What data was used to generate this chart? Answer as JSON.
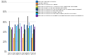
{
  "years": [
    "2013",
    "2014",
    "2015",
    "2016",
    "2017",
    "2018"
  ],
  "institutes": [
    "National Cancer Institute",
    "Clinical Center",
    "National Institute on Aging",
    "National Institute on Allergies and Infectious Diseases",
    "National Heart Lung and Blood Institute",
    "National Institute on Child Health and Human Development",
    "National Institute on Mental Health",
    "National Institute on Drug Abuse",
    "National Institute on Environmental Health Sciences",
    "National Institute on Diabetes Digestive and Kidney Disorders"
  ],
  "colors": [
    "#2e75b6",
    "#ed7d31",
    "#808080",
    "#ffd966",
    "#70ad47",
    "#264478",
    "#9dc3e6",
    "#375623",
    "#00b0f0",
    "#7030a0"
  ],
  "values": [
    [
      52,
      54,
      54,
      52,
      53,
      53
    ],
    [
      28,
      28,
      28,
      28,
      28,
      28
    ],
    [
      62,
      75,
      68,
      68,
      72,
      68
    ],
    [
      38,
      36,
      37,
      36,
      36,
      36
    ],
    [
      48,
      47,
      46,
      46,
      47,
      47
    ],
    [
      52,
      54,
      54,
      55,
      54,
      54
    ],
    [
      58,
      57,
      57,
      57,
      58,
      57
    ],
    [
      45,
      44,
      44,
      44,
      44,
      44
    ],
    [
      52,
      52,
      53,
      53,
      52,
      52
    ],
    [
      48,
      49,
      50,
      50,
      50,
      50
    ]
  ],
  "ylim": [
    0,
    100
  ],
  "yticks": [
    0,
    20,
    40,
    60,
    80,
    100
  ],
  "ytick_labels": [
    "0%",
    "20%",
    "40%",
    "60%",
    "80%",
    "100%"
  ],
  "background_color": "#ffffff",
  "gridcolor": "#d9d9d9"
}
